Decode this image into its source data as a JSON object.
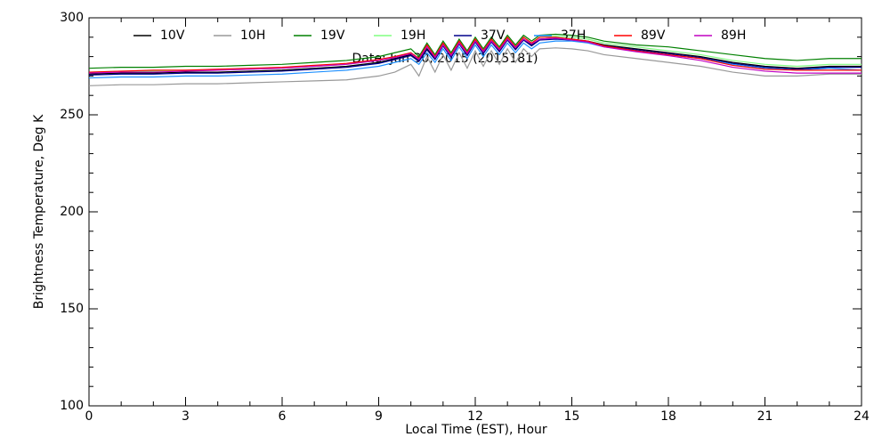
{
  "chart_data": {
    "type": "line",
    "xlabel": "Local Time (EST), Hour",
    "ylabel": "Brightness Temperature, Deg K",
    "annotation": "Date: Jun 30, 2015 (2015181)",
    "xlim": [
      0,
      24
    ],
    "xticks": [
      0,
      3,
      6,
      9,
      12,
      15,
      18,
      21,
      24
    ],
    "ylim": [
      100,
      300
    ],
    "yticks": [
      100,
      150,
      200,
      250,
      300
    ],
    "x": [
      0,
      1,
      2,
      3,
      4,
      5,
      6,
      7,
      8,
      9,
      9.5,
      10,
      10.25,
      10.5,
      10.75,
      11,
      11.25,
      11.5,
      11.75,
      12,
      12.25,
      12.5,
      12.75,
      13,
      13.25,
      13.5,
      13.75,
      14,
      14.5,
      15,
      15.5,
      16,
      17,
      18,
      19,
      20,
      21,
      22,
      23,
      24
    ],
    "series": [
      {
        "name": "10V",
        "color": "#000000",
        "values": [
          271,
          271.5,
          271.5,
          272,
          272,
          272.5,
          273,
          274,
          275,
          277,
          279,
          281,
          278,
          284,
          279,
          286,
          280,
          287,
          281,
          288,
          282,
          288,
          283,
          289,
          284,
          289,
          286,
          289,
          289.5,
          289,
          288,
          286,
          284,
          282,
          280,
          277,
          275,
          274,
          275,
          275
        ]
      },
      {
        "name": "10H",
        "color": "#999999",
        "values": [
          265,
          265.5,
          265.5,
          266,
          266,
          266.5,
          267,
          267.5,
          268,
          270,
          272,
          276,
          270,
          280,
          272,
          281,
          273,
          282,
          274,
          283,
          275,
          283,
          276,
          284,
          277,
          284,
          280,
          284,
          284.5,
          284,
          283,
          281,
          279,
          277,
          275,
          272,
          270,
          270,
          271,
          271
        ]
      },
      {
        "name": "19V",
        "color": "#008000",
        "values": [
          274,
          274.5,
          274.5,
          275,
          275,
          275.5,
          276,
          277,
          278,
          280,
          282,
          284,
          280,
          287,
          281,
          288,
          282,
          289,
          283,
          290,
          284,
          290,
          285,
          291,
          286,
          291,
          288,
          291,
          291.5,
          291,
          290,
          288,
          286,
          285,
          283,
          281,
          279,
          278,
          279,
          279
        ]
      },
      {
        "name": "19H",
        "color": "#80ff80",
        "values": [
          272,
          272.5,
          272.5,
          273,
          273,
          273.5,
          274,
          275,
          276,
          278,
          280,
          282,
          279,
          285,
          280,
          287,
          281,
          288,
          282,
          289,
          283,
          289,
          284,
          290,
          285,
          290,
          287,
          290,
          290.5,
          290,
          289,
          287,
          285,
          283,
          281,
          278,
          276,
          275,
          276,
          276
        ]
      },
      {
        "name": "37V",
        "color": "#00008b",
        "values": [
          270.5,
          271,
          271,
          271.5,
          271.5,
          272,
          272.5,
          273.5,
          274.5,
          276.5,
          278.5,
          280.5,
          277.5,
          283.5,
          278.5,
          285.5,
          279.5,
          286.5,
          280.5,
          287.5,
          281.5,
          287.5,
          282.5,
          288.5,
          283.5,
          288.5,
          285.5,
          288.5,
          289,
          288.5,
          287.5,
          285.5,
          283.5,
          281.5,
          279.5,
          276.5,
          274.5,
          273.5,
          274.5,
          274.5
        ]
      },
      {
        "name": "37H",
        "color": "#1e90ff",
        "values": [
          269,
          269.5,
          269.5,
          270,
          270,
          270.5,
          271,
          272,
          273,
          275,
          277,
          279,
          276,
          282,
          277,
          284,
          278,
          285,
          279,
          286,
          280,
          286,
          281,
          287,
          282,
          287,
          284,
          287,
          288,
          288,
          287,
          285,
          283,
          281,
          279,
          276,
          274,
          273,
          274,
          273
        ]
      },
      {
        "name": "89V",
        "color": "#ff0000",
        "values": [
          272,
          272.5,
          273,
          273,
          273.5,
          274,
          274.5,
          275.5,
          276.5,
          278.5,
          280,
          282,
          279,
          286,
          280,
          287,
          281,
          288,
          282,
          289,
          283,
          289,
          284,
          290,
          285,
          290,
          287,
          290,
          290,
          289,
          288,
          285.5,
          283,
          281,
          279,
          275.5,
          273.5,
          273,
          273,
          273
        ]
      },
      {
        "name": "89H",
        "color": "#c000c0",
        "values": [
          271.5,
          272,
          272,
          272.5,
          273,
          273.5,
          274,
          275,
          276,
          278,
          279.5,
          281.5,
          278.5,
          285,
          279.5,
          286,
          280.5,
          287,
          281.5,
          288,
          282.5,
          288,
          283.5,
          289,
          284.5,
          289,
          286.5,
          289,
          289.5,
          288.5,
          287.5,
          285,
          282.5,
          280.5,
          278,
          274.5,
          272.5,
          271.5,
          271.5,
          271.5
        ]
      }
    ]
  }
}
